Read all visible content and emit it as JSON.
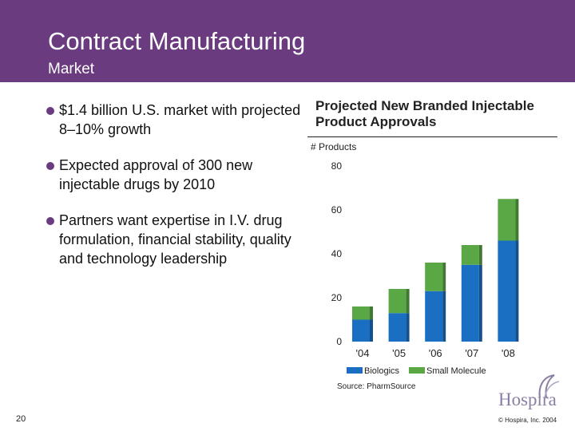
{
  "header": {
    "title": "Contract Manufacturing",
    "subtitle": "Market"
  },
  "bullets": [
    "$1.4 billion U.S. market with projected 8–10% growth",
    "Expected approval of 300 new injectable drugs by 2010",
    "Partners want expertise in I.V. drug formulation, financial stability, quality and technology leadership"
  ],
  "footer": {
    "source": "Source: PharmSource",
    "page_number": "20",
    "copyright": "© Hospira, Inc. 2004"
  },
  "logo": {
    "text": "Hospira"
  },
  "chart_data": {
    "type": "bar",
    "stacked": true,
    "title": "Projected New Branded Injectable Product Approvals",
    "ylabel": "# Products",
    "categories": [
      "'04",
      "'05",
      "'06",
      "'07",
      "'08"
    ],
    "series": [
      {
        "name": "Biologics",
        "values": [
          10,
          13,
          23,
          35,
          46
        ],
        "color": "#1a6fc2"
      },
      {
        "name": "Small Molecule",
        "values": [
          6,
          11,
          13,
          9,
          19
        ],
        "color": "#5aa845"
      }
    ],
    "ylim": [
      0,
      80
    ],
    "yticks": [
      0,
      20,
      40,
      60,
      80
    ],
    "grid": false,
    "legend_position": "bottom"
  }
}
